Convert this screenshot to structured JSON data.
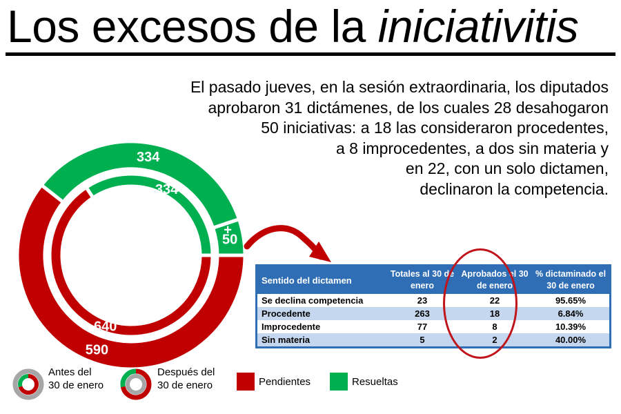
{
  "title": {
    "main": "Los excesos de la ",
    "italic": "iniciativitis"
  },
  "description": "El pasado jueves, en la sesión extraordinaria, los diputados aprobaron 31 dictámenes, de los cuales 28 desahogaron 50 iniciativas: a 18 las consideraron procedentes, a 8 improcedentes, a dos sin materia y en 22, con un solo dictamen, declinaron la competencia.",
  "description_lines": [
    "El pasado jueves, en la sesión extraordinaria, los diputados",
    "aprobaron 31 dictámenes, de los cuales 28 desahogaron",
    "50 iniciativas: a 18 las consideraron procedentes,",
    "a 8 improcedentes, a dos sin materia y",
    "en 22, con un solo dictamen,",
    "declinaron la competencia."
  ],
  "chart_data": [
    {
      "type": "pie",
      "variant": "double-donut",
      "rings": [
        {
          "name": "Antes del 30 de enero",
          "ring": "inner",
          "slices": [
            {
              "label": "Pendientes",
              "value": 640
            },
            {
              "label": "Resueltas",
              "value": 334
            }
          ]
        },
        {
          "name": "Después del 30 de enero",
          "ring": "outer",
          "slices": [
            {
              "label": "Pendientes",
              "value": 590
            },
            {
              "label": "Resueltas",
              "value": 334
            },
            {
              "label": "Resueltas",
              "value": 50
            }
          ]
        }
      ],
      "plus_label": "+",
      "colors": {
        "Pendientes": "#c00000",
        "Resueltas": "#00b050"
      }
    },
    {
      "type": "table",
      "columns": [
        "Sentido del dictamen",
        "Totales al 30 de enero",
        "Aprobados el 30 de enero",
        "% dictaminado el 30 de enero"
      ],
      "rows": [
        [
          "Se declina competencia",
          "23",
          "22",
          "95.65%"
        ],
        [
          "Procedente",
          "263",
          "18",
          "6.84%"
        ],
        [
          "Improcedente",
          "77",
          "8",
          "10.39%"
        ],
        [
          "Sin materia",
          "5",
          "2",
          "40.00%"
        ]
      ]
    }
  ],
  "legend": {
    "before": {
      "line1": "Antes del",
      "line2": "30 de enero"
    },
    "after": {
      "line1": "Después del",
      "line2": "30 de enero"
    },
    "pending": "Pendientes",
    "resolved": "Resueltas"
  },
  "colors": {
    "red": "#c00000",
    "green": "#00b050",
    "gray": "#a6a6a6",
    "table_header": "#2f6db5",
    "table_band": "#c5d7ee"
  }
}
